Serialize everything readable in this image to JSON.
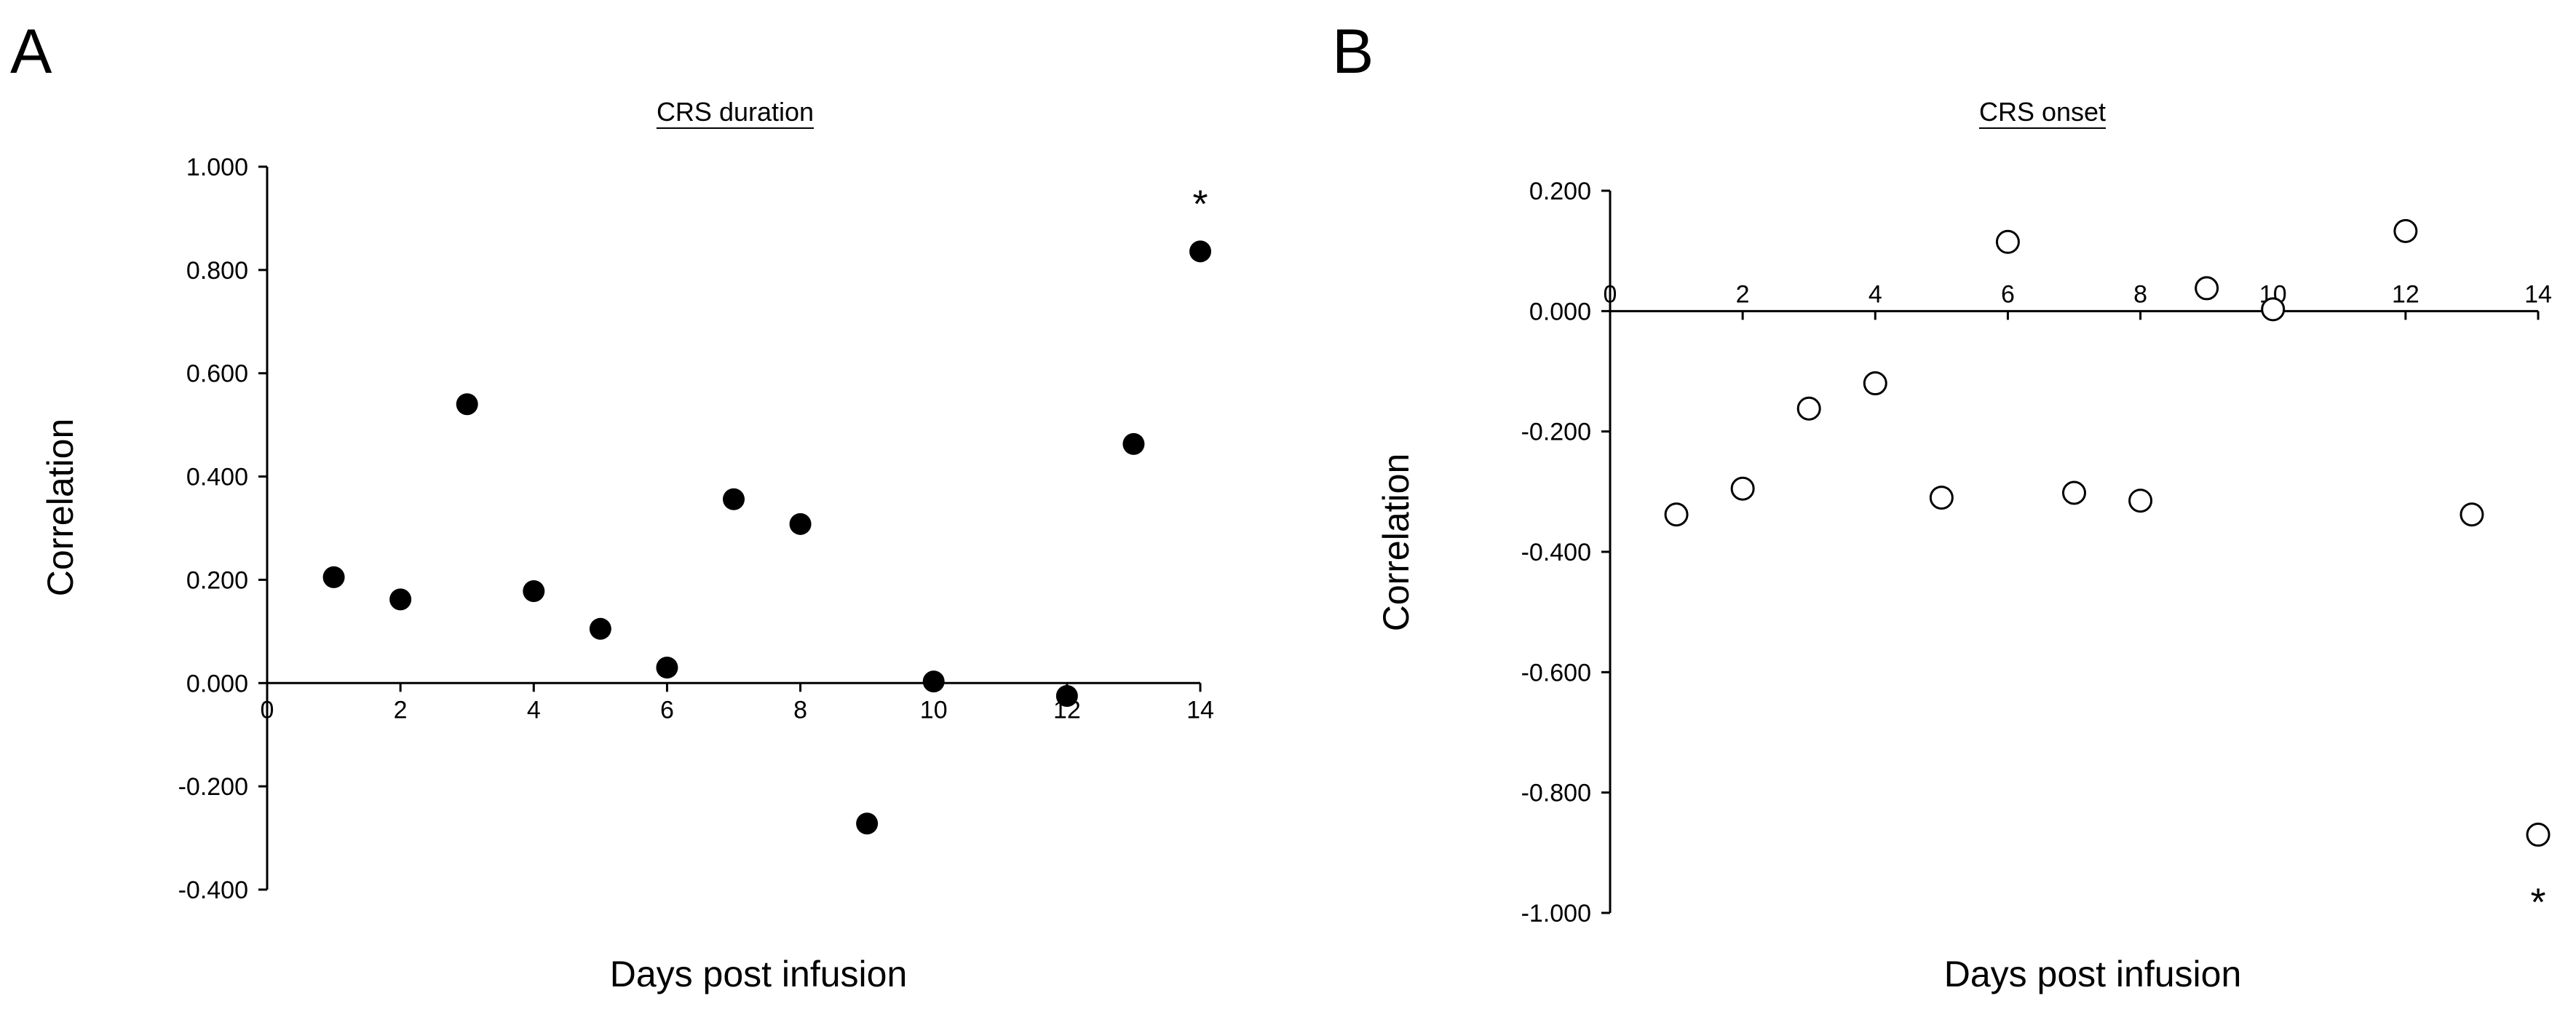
{
  "chart_data": [
    {
      "panel_label": "A",
      "type": "scatter",
      "title": "CRS duration",
      "xlabel": "Days post infusion",
      "ylabel": "Correlation",
      "xlim": [
        0,
        14
      ],
      "ylim": [
        -0.4,
        1.0
      ],
      "xticks": [
        0,
        2,
        4,
        6,
        8,
        10,
        12,
        14
      ],
      "xtick_labels": [
        "0",
        "2",
        "4",
        "6",
        "8",
        "10",
        "12",
        "14"
      ],
      "yticks": [
        1.0,
        0.8,
        0.6,
        0.4,
        0.2,
        0.0,
        -0.2,
        -0.4
      ],
      "ytick_labels": [
        "1.000",
        "0.800",
        "0.600",
        "0.400",
        "0.200",
        "0.000",
        "-0.200",
        "-0.400"
      ],
      "marker": "filled-circle",
      "marker_color": "#000000",
      "grid": false,
      "x": [
        1,
        2,
        3,
        4,
        5,
        6,
        7,
        8,
        9,
        10,
        12,
        13,
        14
      ],
      "y": [
        0.205,
        0.162,
        0.54,
        0.178,
        0.105,
        0.03,
        0.356,
        0.308,
        -0.272,
        0.003,
        -0.025,
        0.463,
        0.836
      ],
      "annotations": [
        {
          "text": "*",
          "x": 14,
          "y": 0.93
        }
      ]
    },
    {
      "panel_label": "B",
      "type": "scatter",
      "title": "CRS onset",
      "xlabel": "Days post infusion",
      "ylabel": "Correlation",
      "xlim": [
        0,
        14
      ],
      "ylim": [
        -1.0,
        0.2
      ],
      "xticks": [
        0,
        2,
        4,
        6,
        8,
        10,
        12,
        14
      ],
      "xtick_labels": [
        "0",
        "2",
        "4",
        "6",
        "8",
        "10",
        "12",
        "14"
      ],
      "yticks": [
        0.2,
        0.0,
        -0.2,
        -0.4,
        -0.6,
        -0.8,
        -1.0
      ],
      "ytick_labels": [
        "0.200",
        "0.000",
        "-0.200",
        "-0.400",
        "-0.600",
        "-0.800",
        "-1.000"
      ],
      "marker": "open-circle",
      "marker_color": "#000000",
      "grid": false,
      "x": [
        1,
        2,
        3,
        4,
        5,
        6,
        7,
        8,
        9,
        10,
        12,
        13,
        14
      ],
      "y": [
        -0.338,
        -0.295,
        -0.162,
        -0.12,
        -0.31,
        0.115,
        -0.302,
        -0.315,
        0.038,
        0.003,
        0.133,
        -0.338,
        -0.87
      ],
      "annotations": [
        {
          "text": "*",
          "x": 14,
          "y": -0.98
        }
      ]
    }
  ]
}
